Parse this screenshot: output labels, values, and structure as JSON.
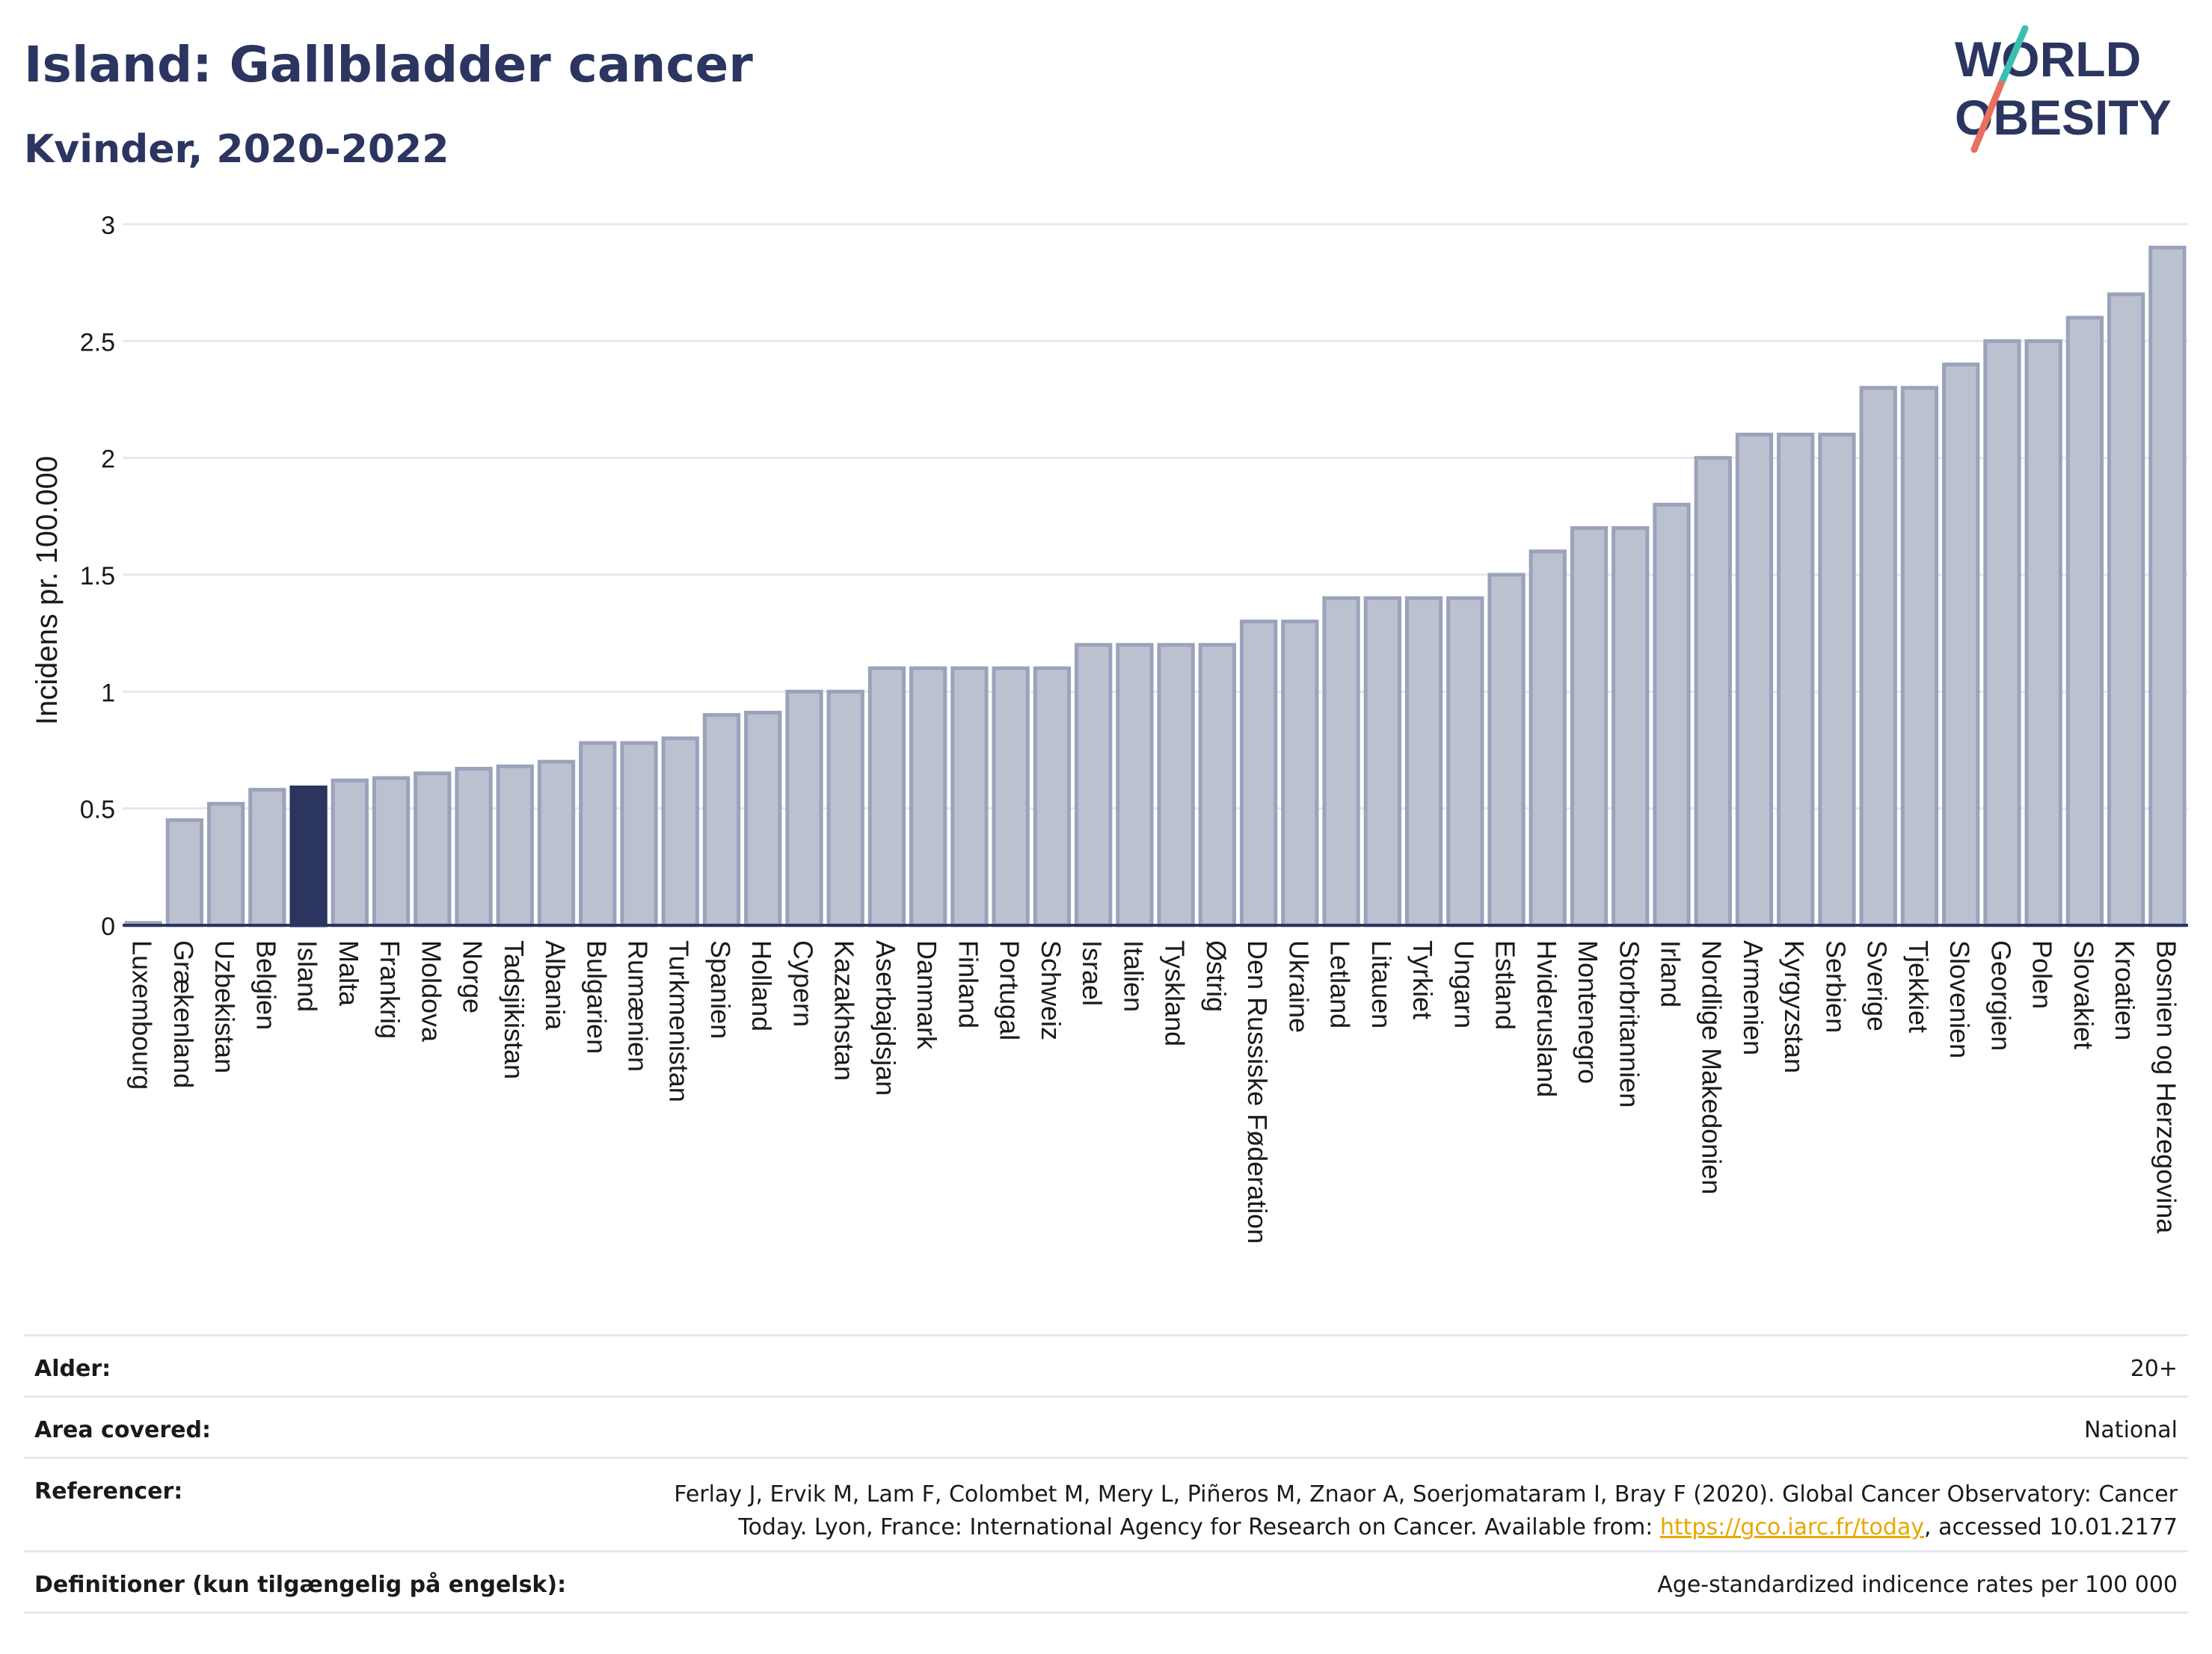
{
  "header": {
    "title": "Island: Gallbladder cancer",
    "subtitle": "Kvinder, 2020-2022"
  },
  "logo": {
    "line1": "WORLD",
    "line2": "OBESITY"
  },
  "colors": {
    "bar": "#bcc1d0",
    "bar_stroke": "#9ba3bb",
    "highlight": "#2b3560",
    "grid": "#e6e8ee",
    "axis": "#2b3560",
    "logo_text": "#2b3560",
    "logo_accent_teal": "#3bbfb0",
    "logo_accent_red": "#e8705e"
  },
  "chart_data": {
    "type": "bar",
    "title": "Island: Gallbladder cancer",
    "subtitle": "Kvinder, 2020-2022",
    "ylabel": "Incidens pr. 100.000",
    "xlabel": "",
    "ylim": [
      0,
      3
    ],
    "yticks": [
      0,
      0.5,
      1,
      1.5,
      2,
      2.5,
      3
    ],
    "ytick_labels": [
      "0",
      "0.5",
      "1",
      "1.5",
      "2",
      "2.5",
      "3"
    ],
    "grid": true,
    "highlight": "Island",
    "categories": [
      "Luxembourg",
      "Grækenland",
      "Uzbekistan",
      "Belgien",
      "Island",
      "Malta",
      "Frankrig",
      "Moldova",
      "Norge",
      "Tadsjikistan",
      "Albania",
      "Bulgarien",
      "Rumænien",
      "Turkmenistan",
      "Spanien",
      "Holland",
      "Cypern",
      "Kazakhstan",
      "Aserbajdsjan",
      "Danmark",
      "Finland",
      "Portugal",
      "Schweiz",
      "Israel",
      "Italien",
      "Tyskland",
      "Østrig",
      "Den Russiske Føderation",
      "Ukraine",
      "Letland",
      "Litauen",
      "Tyrkiet",
      "Ungarn",
      "Estland",
      "Hviderusland",
      "Montenegro",
      "Storbritannien",
      "Irland",
      "Nordlige Makedonien",
      "Armenien",
      "Kyrgyzstan",
      "Serbien",
      "Sverige",
      "Tjekkiet",
      "Slovenien",
      "Georgien",
      "Polen",
      "Slovakiet",
      "Kroatien",
      "Bosnien og Herzegovina"
    ],
    "values": [
      0.01,
      0.45,
      0.52,
      0.58,
      0.59,
      0.62,
      0.63,
      0.65,
      0.67,
      0.68,
      0.7,
      0.78,
      0.78,
      0.8,
      0.9,
      0.91,
      1.0,
      1.0,
      1.1,
      1.1,
      1.1,
      1.1,
      1.1,
      1.2,
      1.2,
      1.2,
      1.2,
      1.3,
      1.3,
      1.4,
      1.4,
      1.4,
      1.4,
      1.5,
      1.6,
      1.7,
      1.7,
      1.8,
      2.0,
      2.1,
      2.1,
      2.1,
      2.3,
      2.3,
      2.4,
      2.5,
      2.5,
      2.6,
      2.7,
      2.9
    ]
  },
  "footer": {
    "age_label": "Alder:",
    "age_value": "20+",
    "area_label": "Area covered:",
    "area_value": "National",
    "ref_label": "Referencer:",
    "ref_text": "Ferlay J, Ervik M, Lam F, Colombet M, Mery L, Piñeros M, Znaor A, Soerjomataram I, Bray F (2020). Global Cancer Observatory: Cancer Today. Lyon, France: International Agency for Research on Cancer. Available from: ",
    "ref_link": "https://gco.iarc.fr/today",
    "ref_tail": ", accessed 10.01.2177",
    "def_label": "Definitioner (kun tilgængelig på engelsk):",
    "def_value": "Age-standardized indicence rates per 100 000"
  }
}
